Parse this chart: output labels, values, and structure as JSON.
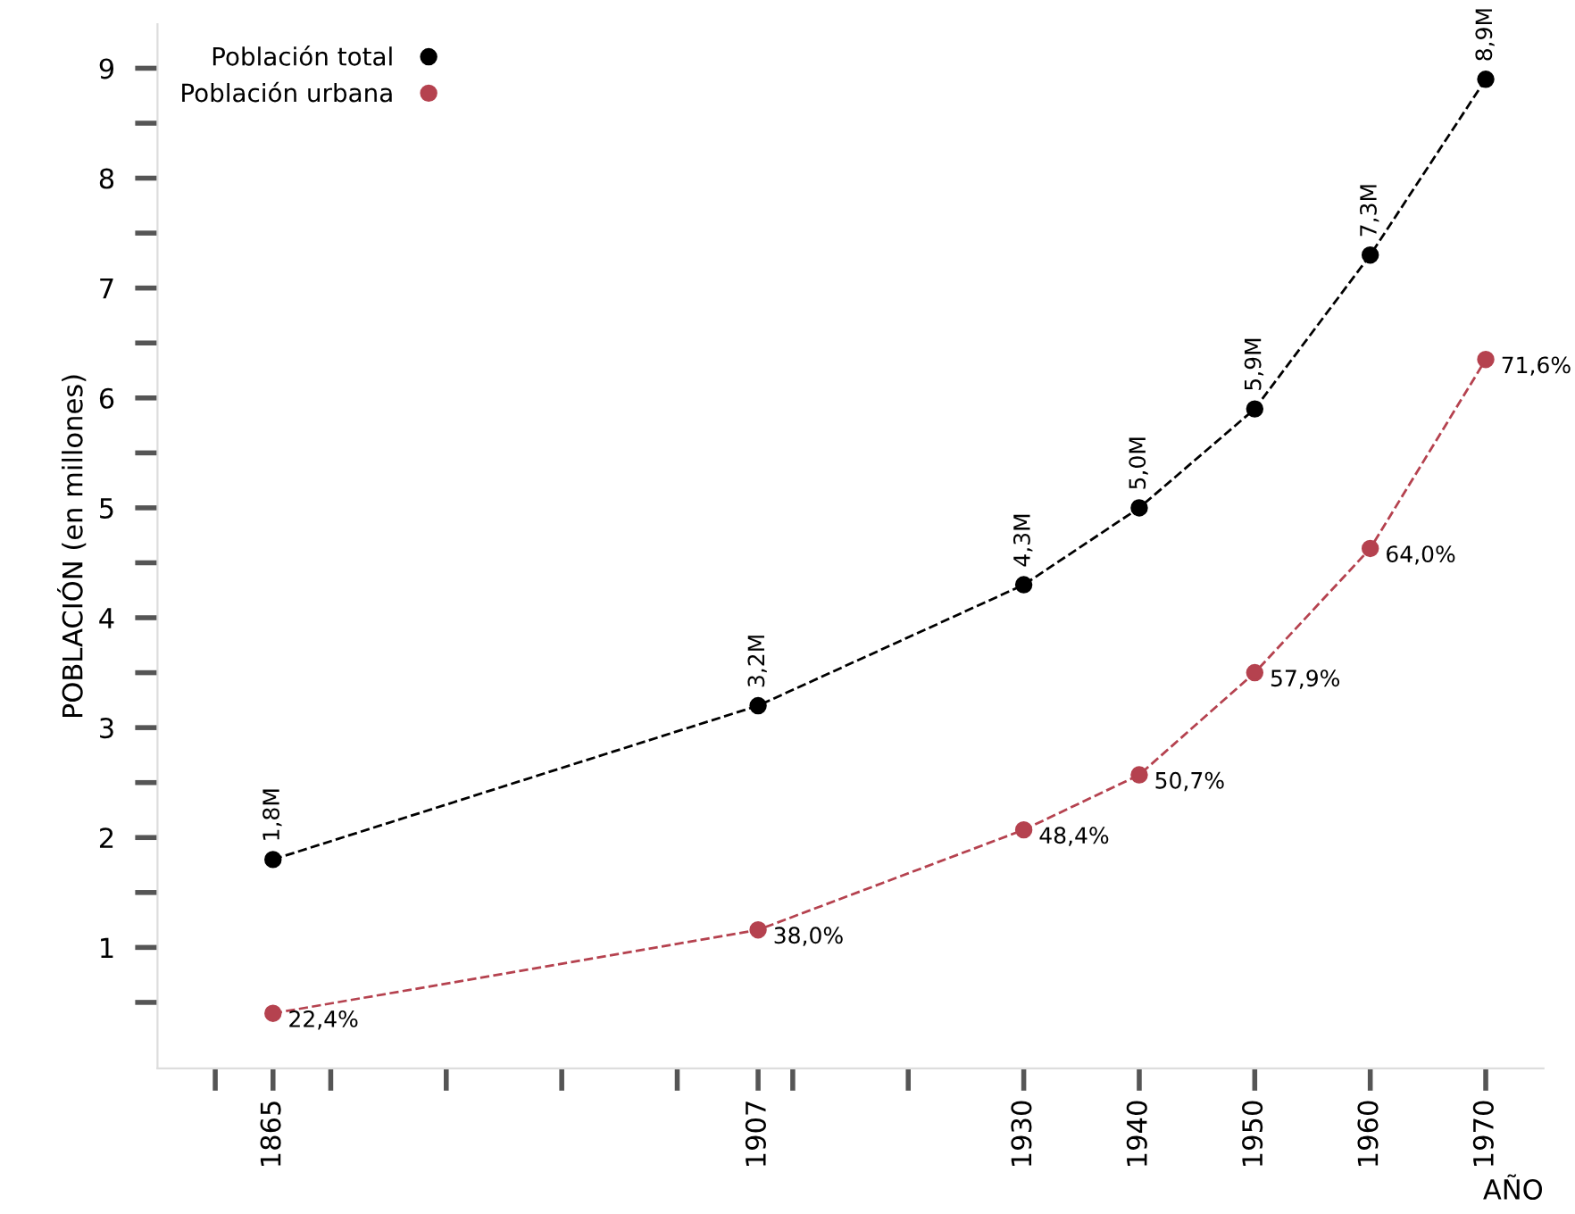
{
  "chart_data": {
    "type": "line",
    "xlabel": "AÑO",
    "ylabel": "POBLACIÓN (en millones)",
    "x": [
      1865,
      1907,
      1930,
      1940,
      1950,
      1960,
      1970
    ],
    "series": [
      {
        "name": "Población total",
        "color": "#000000",
        "values": [
          1.8,
          3.2,
          4.3,
          5.0,
          5.9,
          7.3,
          8.9
        ],
        "value_labels": [
          "1,8M",
          "3,2M",
          "4,3M",
          "5,0M",
          "5,9M",
          "7,3M",
          "8,9M"
        ]
      },
      {
        "name": "Población urbana",
        "color": "#b5424f",
        "values": [
          0.4,
          1.16,
          2.07,
          2.57,
          3.5,
          4.63,
          6.35
        ]
      }
    ],
    "annotations": [
      {
        "text": "22,4%",
        "x": 1865,
        "y": 0.4
      },
      {
        "text": "38,0%",
        "x": 1907,
        "y": 1.16
      },
      {
        "text": "48,4%",
        "x": 1930,
        "y": 2.07
      },
      {
        "text": "50,7%",
        "x": 1940,
        "y": 2.57
      },
      {
        "text": "57,9%",
        "x": 1950,
        "y": 3.5
      },
      {
        "text": "64,0%",
        "x": 1960,
        "y": 4.63
      },
      {
        "text": "71,6%",
        "x": 1970,
        "y": 6.35
      }
    ],
    "xlim": [
      1855,
      1975
    ],
    "ylim": [
      -0.1,
      9.4
    ],
    "xticks": [
      {
        "value": 1860,
        "label": null
      },
      1865,
      {
        "value": 1870,
        "label": null
      },
      {
        "value": 1880,
        "label": null
      },
      {
        "value": 1890,
        "label": null
      },
      {
        "value": 1900,
        "label": null
      },
      1907,
      {
        "value": 1910,
        "label": null
      },
      {
        "value": 1920,
        "label": null
      },
      1930,
      1940,
      1950,
      1960,
      1970
    ],
    "yticks": [
      {
        "value": 0.5,
        "label": null
      },
      1,
      {
        "value": 1.5,
        "label": null
      },
      2,
      {
        "value": 2.5,
        "label": null
      },
      3,
      {
        "value": 3.5,
        "label": null
      },
      4,
      {
        "value": 4.5,
        "label": null
      },
      5,
      {
        "value": 5.5,
        "label": null
      },
      6,
      {
        "value": 6.5,
        "label": null
      },
      7,
      {
        "value": 7.5,
        "label": null
      },
      8,
      {
        "value": 8.5,
        "label": null
      },
      9
    ],
    "marker": "circle",
    "line_style": "dashed",
    "grid": false,
    "legend": "top left"
  }
}
